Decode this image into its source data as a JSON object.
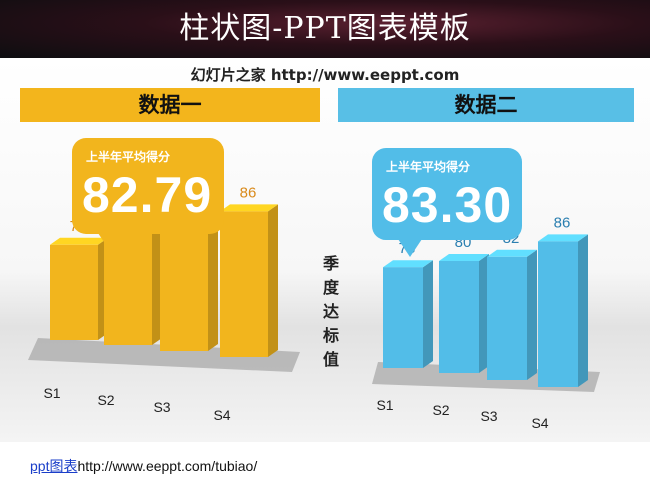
{
  "title": "柱状图-PPT图表模板",
  "subtitle": "幻灯片之家 http://www.eeppt.com",
  "vertical_label": [
    "季",
    "度",
    "达",
    "标",
    "值"
  ],
  "footer": {
    "link_text": "ppt图表",
    "url_text": "http://www.eeppt.com/tubiao/"
  },
  "colors": {
    "yellow": "#f2b51d",
    "blue": "#52bde8",
    "yellow_label": "#d98a1a",
    "blue_label": "#2b7fb0"
  },
  "chart_data": [
    {
      "type": "bar",
      "title": "数据一",
      "categories": [
        "S1",
        "S2",
        "S3",
        "S4"
      ],
      "values": [
        77,
        80,
        82,
        86
      ],
      "summary_label": "上半年平均得分",
      "summary_value": "82.79"
    },
    {
      "type": "bar",
      "title": "数据二",
      "categories": [
        "S1",
        "S2",
        "S3",
        "S4"
      ],
      "values": [
        78,
        80,
        82,
        86
      ],
      "summary_label": "上半年平均得分",
      "summary_value": "83.30"
    }
  ]
}
